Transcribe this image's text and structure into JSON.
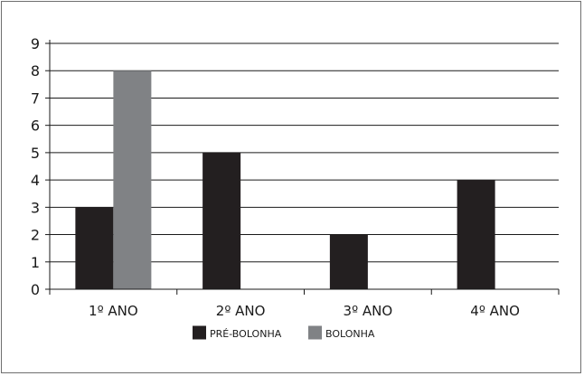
{
  "chart_data": {
    "type": "bar",
    "categories": [
      "1º ANO",
      "2º ANO",
      "3º ANO",
      "4º ANO"
    ],
    "series": [
      {
        "name": "PRÉ-BOLONHA",
        "values": [
          3,
          5,
          2,
          4
        ],
        "color": "#231f20"
      },
      {
        "name": "BOLONHA",
        "values": [
          8,
          0,
          0,
          0
        ],
        "color": "#808285"
      }
    ],
    "y_ticks": [
      0,
      1,
      2,
      3,
      4,
      5,
      6,
      7,
      8,
      9
    ],
    "ylim": [
      0,
      9
    ],
    "grid": true,
    "legend_position": "bottom-center"
  }
}
